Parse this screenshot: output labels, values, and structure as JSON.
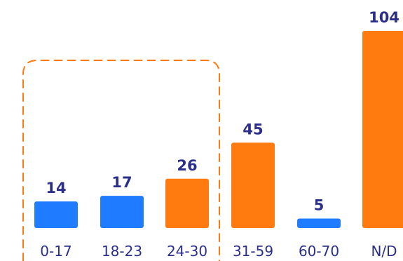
{
  "chart_data": {
    "type": "bar",
    "title": "",
    "xlabel": "",
    "ylabel": "",
    "categories": [
      "0-17",
      "18-23",
      "24-30",
      "31-59",
      "60-70",
      "N/D"
    ],
    "values": [
      14,
      17,
      26,
      45,
      5,
      104
    ],
    "bar_colors": [
      "#1f7bff",
      "#1f7bff",
      "#ff7a0f",
      "#ff7a0f",
      "#1f7bff",
      "#ff7a0f"
    ],
    "highlight_group": {
      "categories": [
        "0-17",
        "18-23",
        "24-30"
      ],
      "style": "dashed-rounded-box",
      "color": "#ff7a0f"
    },
    "grid": false,
    "legend": "none",
    "ylim": [
      0,
      104
    ]
  },
  "colors": {
    "blue": "#1f7bff",
    "orange": "#ff7a0f",
    "text": "#2b2f8a"
  }
}
